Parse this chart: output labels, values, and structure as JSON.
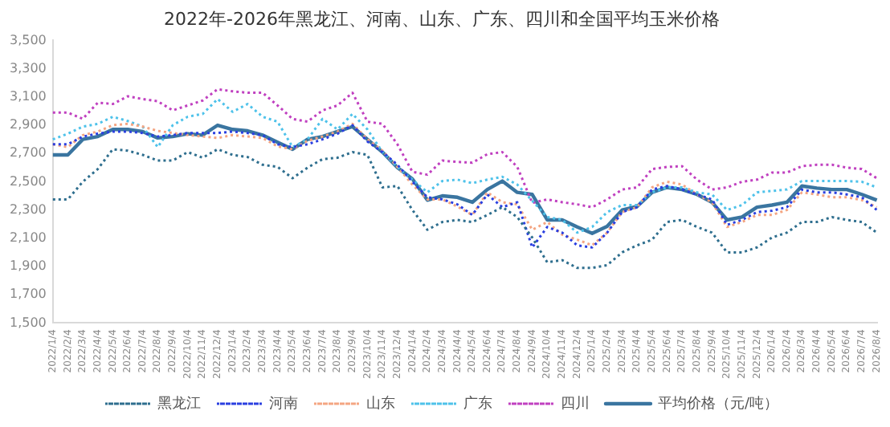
{
  "chart_data": {
    "type": "line",
    "title": "2022年-2026年黑龙江、河南、山东、广东、四川和全国平均玉米价格",
    "categories": [
      "2022/1/4",
      "2022/2/4",
      "2022/3/4",
      "2022/4/4",
      "2022/5/4",
      "2022/6/4",
      "2022/7/4",
      "2022/8/4",
      "2022/9/4",
      "2022/10/4",
      "2022/11/4",
      "2022/12/4",
      "2023/1/4",
      "2023/2/4",
      "2023/3/4",
      "2023/4/4",
      "2023/5/4",
      "2023/6/4",
      "2023/7/4",
      "2023/8/4",
      "2023/9/4",
      "2023/10/4",
      "2023/11/4",
      "2023/12/4",
      "2024/1/4",
      "2024/2/4",
      "2024/3/4",
      "2024/4/4",
      "2024/5/4",
      "2024/6/4",
      "2024/7/4",
      "2024/8/4",
      "2024/9/4",
      "2024/10/4",
      "2024/11/4",
      "2024/12/4",
      "2025/1/4",
      "2025/2/4",
      "2025/3/4",
      "2025/4/4",
      "2025/5/4",
      "2025/6/4",
      "2025/7/4",
      "2025/8/4",
      "2025/9/4",
      "2025/10/4",
      "2025/11/4",
      "2025/12/4",
      "2026/1/4",
      "2026/2/4",
      "2026/3/4",
      "2026/4/4",
      "2026/5/4",
      "2026/6/4",
      "2026/7/4",
      "2026/8/4"
    ],
    "series": [
      {
        "name": "黑龙江",
        "color": "#2e6e8e",
        "line_style": "dotted",
        "values": [
          2375,
          2375,
          2500,
          2590,
          2730,
          2720,
          2690,
          2650,
          2650,
          2710,
          2670,
          2730,
          2690,
          2675,
          2620,
          2605,
          2525,
          2600,
          2660,
          2670,
          2710,
          2690,
          2460,
          2470,
          2300,
          2160,
          2215,
          2230,
          2215,
          2265,
          2320,
          2250,
          2105,
          1930,
          1945,
          1890,
          1890,
          1910,
          2000,
          2050,
          2090,
          2215,
          2230,
          2180,
          2140,
          2000,
          2000,
          2035,
          2105,
          2140,
          2215,
          2215,
          2250,
          2230,
          2215,
          2140
        ]
      },
      {
        "name": "河南",
        "color": "#2a3fe0",
        "line_style": "dotted",
        "values": [
          2765,
          2765,
          2820,
          2840,
          2855,
          2855,
          2845,
          2820,
          2830,
          2845,
          2845,
          2845,
          2855,
          2845,
          2830,
          2765,
          2745,
          2765,
          2800,
          2840,
          2900,
          2785,
          2710,
          2620,
          2500,
          2390,
          2375,
          2340,
          2265,
          2410,
          2320,
          2355,
          2035,
          2180,
          2140,
          2050,
          2035,
          2140,
          2285,
          2320,
          2445,
          2470,
          2445,
          2410,
          2375,
          2195,
          2230,
          2285,
          2295,
          2320,
          2445,
          2425,
          2425,
          2410,
          2390,
          2300
        ]
      },
      {
        "name": "山东",
        "color": "#f4a582",
        "line_style": "dotted",
        "values": [
          2765,
          2745,
          2830,
          2855,
          2900,
          2910,
          2890,
          2860,
          2845,
          2830,
          2820,
          2810,
          2830,
          2820,
          2810,
          2750,
          2730,
          2790,
          2820,
          2855,
          2910,
          2800,
          2720,
          2605,
          2480,
          2375,
          2375,
          2325,
          2265,
          2425,
          2355,
          2340,
          2160,
          2215,
          2125,
          2090,
          2050,
          2140,
          2285,
          2320,
          2460,
          2500,
          2480,
          2410,
          2355,
          2180,
          2215,
          2265,
          2265,
          2300,
          2425,
          2410,
          2390,
          2390,
          2370,
          2320
        ]
      },
      {
        "name": "广东",
        "color": "#4ec2ea",
        "line_style": "dotted",
        "values": [
          2800,
          2840,
          2890,
          2910,
          2960,
          2930,
          2890,
          2745,
          2900,
          2960,
          2980,
          3085,
          2995,
          3050,
          2960,
          2925,
          2745,
          2800,
          2945,
          2870,
          2980,
          2870,
          2710,
          2605,
          2515,
          2425,
          2505,
          2515,
          2490,
          2515,
          2535,
          2480,
          2365,
          2250,
          2230,
          2140,
          2180,
          2285,
          2335,
          2335,
          2425,
          2460,
          2460,
          2425,
          2410,
          2300,
          2335,
          2425,
          2435,
          2445,
          2505,
          2505,
          2505,
          2505,
          2500,
          2460
        ]
      },
      {
        "name": "四川",
        "color": "#c040c0",
        "line_style": "dotted",
        "values": [
          2990,
          2990,
          2945,
          3060,
          3050,
          3105,
          3085,
          3070,
          3005,
          3040,
          3075,
          3155,
          3140,
          3130,
          3130,
          3040,
          2945,
          2925,
          3005,
          3040,
          3130,
          2925,
          2910,
          2765,
          2570,
          2550,
          2650,
          2640,
          2635,
          2695,
          2710,
          2605,
          2350,
          2375,
          2355,
          2340,
          2320,
          2375,
          2445,
          2460,
          2590,
          2605,
          2610,
          2515,
          2445,
          2460,
          2500,
          2515,
          2565,
          2565,
          2610,
          2620,
          2620,
          2600,
          2590,
          2525
        ]
      },
      {
        "name": "平均价格（元/吨）",
        "color": "#3a75a0",
        "line_style": "solid",
        "values": [
          2690,
          2690,
          2800,
          2820,
          2870,
          2870,
          2855,
          2810,
          2820,
          2840,
          2830,
          2900,
          2870,
          2860,
          2830,
          2780,
          2730,
          2800,
          2820,
          2855,
          2890,
          2800,
          2710,
          2600,
          2520,
          2370,
          2400,
          2390,
          2355,
          2445,
          2505,
          2425,
          2410,
          2230,
          2230,
          2180,
          2135,
          2185,
          2300,
          2325,
          2425,
          2460,
          2445,
          2410,
          2355,
          2230,
          2250,
          2320,
          2335,
          2355,
          2470,
          2455,
          2445,
          2445,
          2410,
          2370
        ]
      }
    ],
    "ylim": [
      1500,
      3500
    ],
    "yticks": [
      {
        "value": 1500,
        "label": "1,500"
      },
      {
        "value": 1700,
        "label": "1,700"
      },
      {
        "value": 1900,
        "label": "1,900"
      },
      {
        "value": 2100,
        "label": "2,100"
      },
      {
        "value": 2300,
        "label": "2,300"
      },
      {
        "value": 2500,
        "label": "2,500"
      },
      {
        "value": 2700,
        "label": "2,700"
      },
      {
        "value": 2900,
        "label": "2,900"
      },
      {
        "value": 3100,
        "label": "3,100"
      },
      {
        "value": 3300,
        "label": "3,300"
      },
      {
        "value": 3500,
        "label": "3,500"
      }
    ],
    "grid": false,
    "legend": "bottom",
    "marker": "none"
  }
}
